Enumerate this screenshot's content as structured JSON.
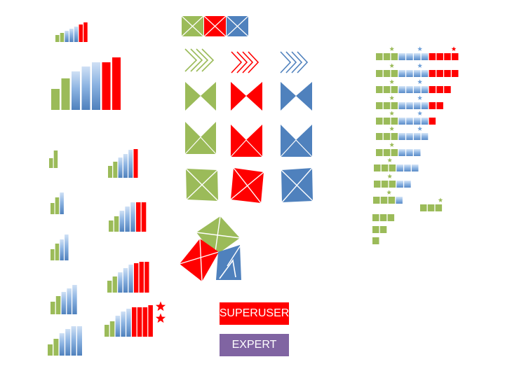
{
  "colors": {
    "green": "#9bbb59",
    "red": "#ff0000",
    "blue": "#4f81bd",
    "light_blue": "#8db4e2",
    "badge_superuser": "#ff0000",
    "badge_expert": "#8064a2"
  },
  "badges": {
    "superuser": "SUPERUSER",
    "expert": "EXPERT"
  }
}
